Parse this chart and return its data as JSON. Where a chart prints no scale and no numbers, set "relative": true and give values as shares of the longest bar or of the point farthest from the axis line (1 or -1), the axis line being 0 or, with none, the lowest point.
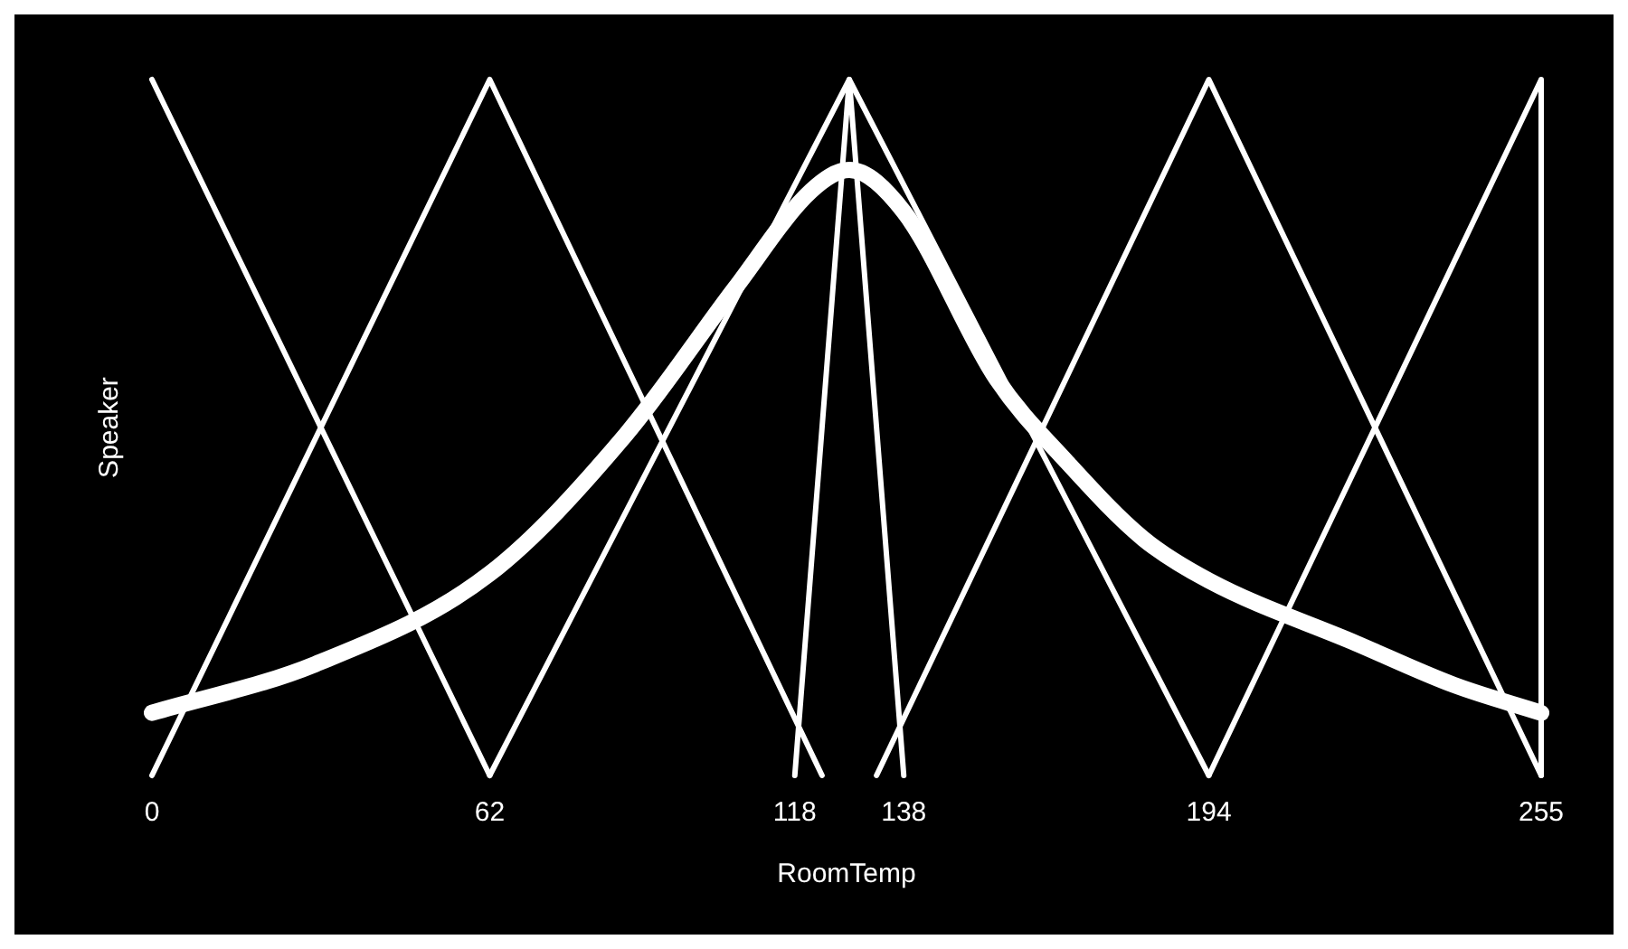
{
  "chart_data": {
    "type": "line",
    "xlabel": "RoomTemp",
    "ylabel": "Speaker",
    "relative": true,
    "grid": false,
    "legend": false,
    "tick_labels": "x",
    "marker": "none",
    "line_style": "solid",
    "xlim": [
      0,
      255
    ],
    "xticks": [
      0,
      62,
      118,
      138,
      194,
      255
    ],
    "series": [
      {
        "color": "#ffffff",
        "x": [
          0,
          62
        ],
        "values": [
          1,
          0
        ]
      },
      {
        "color": "#ffffff",
        "x": [
          0,
          62,
          123
        ],
        "values": [
          0,
          1,
          0
        ]
      },
      {
        "color": "#ffffff",
        "x": [
          62,
          128,
          194
        ],
        "values": [
          0,
          1,
          0
        ]
      },
      {
        "color": "#ffffff",
        "x": [
          118,
          128,
          138
        ],
        "values": [
          0,
          1,
          0
        ]
      },
      {
        "color": "#ffffff",
        "x": [
          133,
          194,
          255
        ],
        "values": [
          0,
          1,
          0
        ]
      },
      {
        "color": "#ffffff",
        "x": [
          194,
          255,
          255
        ],
        "values": [
          0,
          1,
          0
        ]
      },
      {
        "color": "#ffffff",
        "x": [
          0,
          30,
          62,
          87,
          107,
          121,
          128,
          138,
          155,
          168,
          182,
          194,
          221,
          239,
          255
        ],
        "values": [
          0.09,
          0.16,
          0.29,
          0.49,
          0.7,
          0.84,
          0.87,
          0.81,
          0.57,
          0.45,
          0.34,
          0.28,
          0.19,
          0.13,
          0.09
        ]
      }
    ]
  }
}
